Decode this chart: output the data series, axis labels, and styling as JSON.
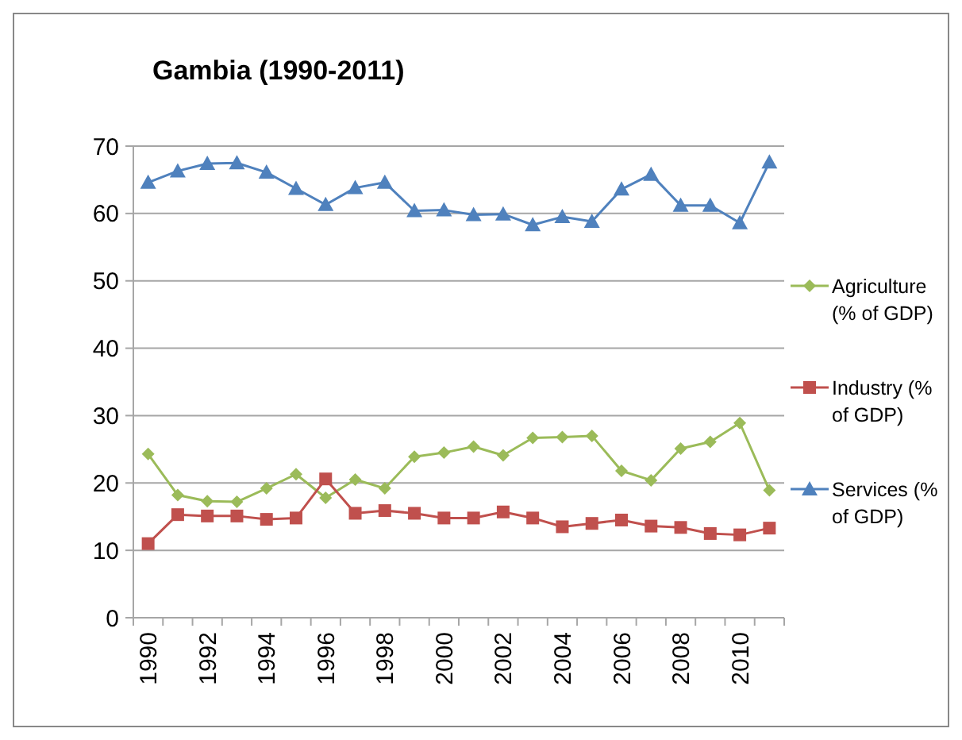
{
  "chart_data": {
    "type": "line",
    "title": "Gambia (1990-2011)",
    "categories": [
      "1990",
      null,
      "1992",
      null,
      "1994",
      null,
      "1996",
      null,
      "1998",
      null,
      "2000",
      null,
      "2002",
      null,
      "2004",
      null,
      "2006",
      null,
      "2008",
      null,
      "2010",
      null
    ],
    "series": [
      {
        "name": "Agriculture (% of GDP)",
        "color": "#9bbb59",
        "marker": "diamond",
        "values": [
          24.3,
          18.2,
          17.3,
          17.2,
          19.2,
          21.3,
          17.8,
          20.5,
          19.2,
          23.9,
          24.5,
          25.4,
          24.1,
          26.7,
          26.8,
          27.0,
          21.8,
          20.4,
          25.1,
          26.1,
          28.9,
          18.9
        ]
      },
      {
        "name": "Industry (% of GDP)",
        "color": "#c0504d",
        "marker": "square",
        "values": [
          11.0,
          15.3,
          15.1,
          15.1,
          14.6,
          14.8,
          20.6,
          15.5,
          15.9,
          15.5,
          14.8,
          14.8,
          15.7,
          14.8,
          13.5,
          14.0,
          14.5,
          13.6,
          13.4,
          12.5,
          12.3,
          13.3
        ]
      },
      {
        "name": "Services (% of GDP)",
        "color": "#4f81bd",
        "marker": "triangle",
        "values": [
          64.6,
          66.3,
          67.4,
          67.5,
          66.1,
          63.7,
          61.3,
          63.8,
          64.6,
          60.4,
          60.5,
          59.8,
          59.9,
          58.3,
          59.5,
          58.8,
          63.6,
          65.8,
          61.2,
          61.2,
          58.6,
          67.6
        ]
      }
    ],
    "ylim": [
      0,
      70
    ],
    "yticks": [
      0,
      10,
      20,
      30,
      40,
      50,
      60,
      70
    ],
    "grid": "y",
    "legend": "right"
  }
}
